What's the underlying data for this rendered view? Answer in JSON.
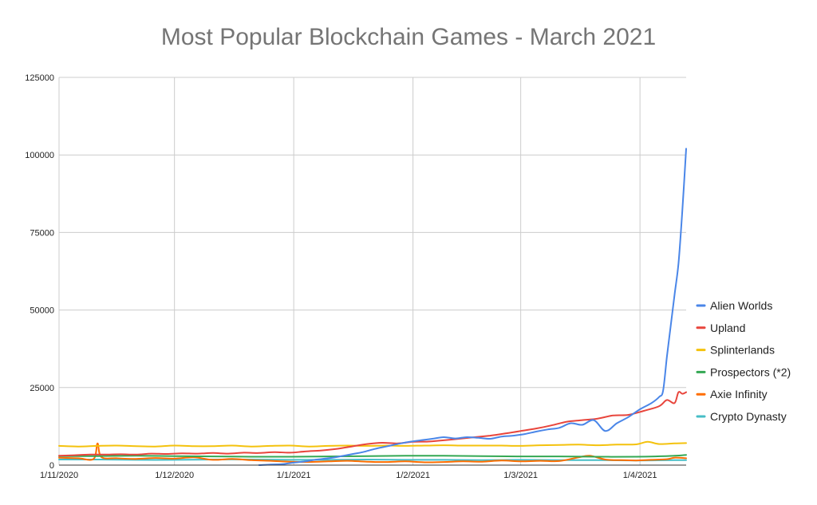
{
  "chart_data": {
    "type": "line",
    "title": "Most Popular Blockchain Games - March 2021",
    "xlabel": "",
    "ylabel": "",
    "x_tick_labels": [
      "1/11/2020",
      "1/12/2020",
      "1/1/2021",
      "1/2/2021",
      "1/3/2021",
      "1/4/2021"
    ],
    "x_tick_days": [
      0,
      30,
      61,
      92,
      120,
      151
    ],
    "x_range_days": [
      0,
      163
    ],
    "ylim": [
      0,
      125000
    ],
    "y_ticks": [
      0,
      25000,
      50000,
      75000,
      100000,
      125000
    ],
    "y_tick_labels": [
      "0",
      "25000",
      "50000",
      "75000",
      "100000",
      "125000"
    ],
    "grid": true,
    "legend_position": "right",
    "series": [
      {
        "name": "Alien Worlds",
        "color": "#4a86e8",
        "points": [
          [
            52,
            0
          ],
          [
            55,
            200
          ],
          [
            58,
            300
          ],
          [
            61,
            800
          ],
          [
            64,
            1200
          ],
          [
            67,
            1800
          ],
          [
            70,
            2200
          ],
          [
            73,
            2800
          ],
          [
            76,
            3500
          ],
          [
            79,
            4200
          ],
          [
            82,
            5200
          ],
          [
            85,
            6000
          ],
          [
            88,
            6800
          ],
          [
            91,
            7500
          ],
          [
            94,
            8000
          ],
          [
            97,
            8500
          ],
          [
            100,
            9000
          ],
          [
            103,
            8600
          ],
          [
            106,
            9000
          ],
          [
            109,
            8800
          ],
          [
            112,
            8500
          ],
          [
            115,
            9200
          ],
          [
            118,
            9500
          ],
          [
            121,
            10000
          ],
          [
            124,
            10800
          ],
          [
            127,
            11500
          ],
          [
            130,
            12000
          ],
          [
            133,
            13500
          ],
          [
            136,
            13000
          ],
          [
            139,
            14500
          ],
          [
            142,
            11000
          ],
          [
            145,
            13500
          ],
          [
            148,
            15500
          ],
          [
            151,
            18000
          ],
          [
            154,
            20000
          ],
          [
            156,
            22000
          ],
          [
            157,
            24000
          ],
          [
            158,
            35000
          ],
          [
            159,
            45000
          ],
          [
            160,
            55000
          ],
          [
            161,
            65000
          ],
          [
            162,
            82000
          ],
          [
            163,
            102000
          ]
        ]
      },
      {
        "name": "Upland",
        "color": "#e8453c",
        "points": [
          [
            0,
            3000
          ],
          [
            4,
            3200
          ],
          [
            8,
            3400
          ],
          [
            12,
            3400
          ],
          [
            16,
            3500
          ],
          [
            20,
            3400
          ],
          [
            24,
            3700
          ],
          [
            28,
            3600
          ],
          [
            32,
            3800
          ],
          [
            36,
            3700
          ],
          [
            40,
            3900
          ],
          [
            44,
            3700
          ],
          [
            48,
            4000
          ],
          [
            52,
            3900
          ],
          [
            56,
            4200
          ],
          [
            60,
            4000
          ],
          [
            64,
            4400
          ],
          [
            68,
            4700
          ],
          [
            72,
            5200
          ],
          [
            76,
            6000
          ],
          [
            80,
            6800
          ],
          [
            84,
            7200
          ],
          [
            88,
            7000
          ],
          [
            92,
            7500
          ],
          [
            96,
            7600
          ],
          [
            100,
            8000
          ],
          [
            104,
            8500
          ],
          [
            108,
            9000
          ],
          [
            112,
            9500
          ],
          [
            116,
            10200
          ],
          [
            120,
            11000
          ],
          [
            124,
            11800
          ],
          [
            128,
            12800
          ],
          [
            132,
            14000
          ],
          [
            136,
            14500
          ],
          [
            140,
            15000
          ],
          [
            144,
            16000
          ],
          [
            148,
            16200
          ],
          [
            152,
            17500
          ],
          [
            156,
            19000
          ],
          [
            158,
            21000
          ],
          [
            160,
            20000
          ],
          [
            161,
            23500
          ],
          [
            162,
            23000
          ],
          [
            163,
            23500
          ]
        ]
      },
      {
        "name": "Splinterlands",
        "color": "#f4c20d",
        "points": [
          [
            0,
            6200
          ],
          [
            5,
            6000
          ],
          [
            10,
            6200
          ],
          [
            15,
            6300
          ],
          [
            20,
            6100
          ],
          [
            25,
            6000
          ],
          [
            30,
            6300
          ],
          [
            35,
            6100
          ],
          [
            40,
            6100
          ],
          [
            45,
            6300
          ],
          [
            50,
            6000
          ],
          [
            55,
            6200
          ],
          [
            60,
            6300
          ],
          [
            65,
            6000
          ],
          [
            70,
            6200
          ],
          [
            75,
            6300
          ],
          [
            80,
            6200
          ],
          [
            85,
            6300
          ],
          [
            90,
            6200
          ],
          [
            95,
            6300
          ],
          [
            100,
            6400
          ],
          [
            105,
            6300
          ],
          [
            110,
            6300
          ],
          [
            115,
            6300
          ],
          [
            120,
            6200
          ],
          [
            125,
            6400
          ],
          [
            130,
            6500
          ],
          [
            135,
            6600
          ],
          [
            140,
            6400
          ],
          [
            145,
            6600
          ],
          [
            150,
            6700
          ],
          [
            153,
            7500
          ],
          [
            156,
            6800
          ],
          [
            160,
            7000
          ],
          [
            163,
            7100
          ]
        ]
      },
      {
        "name": "Prospectors (*2)",
        "color": "#34a853",
        "points": [
          [
            0,
            2900
          ],
          [
            10,
            2900
          ],
          [
            20,
            3000
          ],
          [
            30,
            2900
          ],
          [
            40,
            2800
          ],
          [
            50,
            2700
          ],
          [
            60,
            2700
          ],
          [
            70,
            2800
          ],
          [
            80,
            2900
          ],
          [
            90,
            3000
          ],
          [
            100,
            3000
          ],
          [
            110,
            2900
          ],
          [
            120,
            2800
          ],
          [
            130,
            2800
          ],
          [
            140,
            2700
          ],
          [
            150,
            2700
          ],
          [
            155,
            2800
          ],
          [
            160,
            3000
          ],
          [
            163,
            3300
          ]
        ]
      },
      {
        "name": "Axie Infinity",
        "color": "#ff6d00",
        "points": [
          [
            0,
            2400
          ],
          [
            5,
            2200
          ],
          [
            9,
            2000
          ],
          [
            10,
            7000
          ],
          [
            11,
            2600
          ],
          [
            15,
            2200
          ],
          [
            20,
            2000
          ],
          [
            25,
            2300
          ],
          [
            30,
            2100
          ],
          [
            35,
            2500
          ],
          [
            40,
            1700
          ],
          [
            45,
            2000
          ],
          [
            50,
            1600
          ],
          [
            55,
            1400
          ],
          [
            60,
            1100
          ],
          [
            65,
            1000
          ],
          [
            70,
            1200
          ],
          [
            75,
            1400
          ],
          [
            80,
            1100
          ],
          [
            85,
            1000
          ],
          [
            90,
            1200
          ],
          [
            95,
            900
          ],
          [
            100,
            1000
          ],
          [
            105,
            1200
          ],
          [
            110,
            1100
          ],
          [
            115,
            1500
          ],
          [
            120,
            1200
          ],
          [
            125,
            1400
          ],
          [
            130,
            1300
          ],
          [
            135,
            2500
          ],
          [
            138,
            3000
          ],
          [
            142,
            1800
          ],
          [
            146,
            1600
          ],
          [
            150,
            1500
          ],
          [
            154,
            1700
          ],
          [
            158,
            1900
          ],
          [
            160,
            2400
          ],
          [
            163,
            2200
          ]
        ]
      },
      {
        "name": "Crypto Dynasty",
        "color": "#46bdc6",
        "points": [
          [
            0,
            1800
          ],
          [
            10,
            1800
          ],
          [
            20,
            1700
          ],
          [
            30,
            1700
          ],
          [
            40,
            1800
          ],
          [
            50,
            1800
          ],
          [
            60,
            1700
          ],
          [
            70,
            1700
          ],
          [
            80,
            1800
          ],
          [
            90,
            1700
          ],
          [
            100,
            1700
          ],
          [
            110,
            1600
          ],
          [
            120,
            1700
          ],
          [
            130,
            1600
          ],
          [
            140,
            1600
          ],
          [
            150,
            1500
          ],
          [
            160,
            1600
          ],
          [
            163,
            1600
          ]
        ]
      }
    ]
  }
}
